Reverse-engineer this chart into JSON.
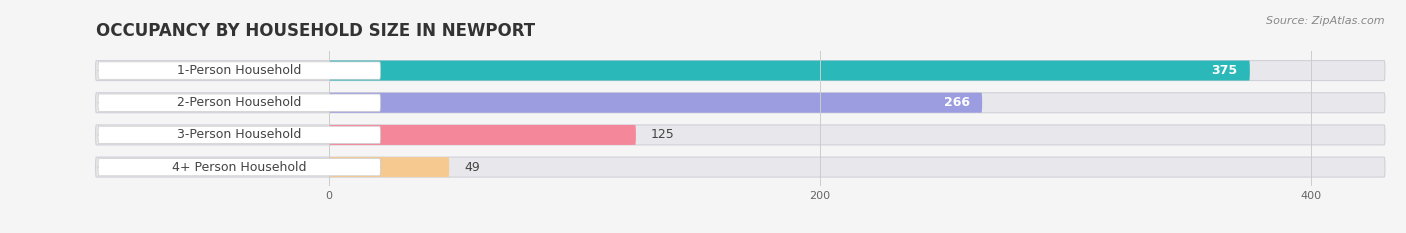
{
  "title": "OCCUPANCY BY HOUSEHOLD SIZE IN NEWPORT",
  "source": "Source: ZipAtlas.com",
  "categories": [
    "1-Person Household",
    "2-Person Household",
    "3-Person Household",
    "4+ Person Household"
  ],
  "values": [
    375,
    266,
    125,
    49
  ],
  "bar_colors": [
    "#2ab8b8",
    "#9b9de0",
    "#f4879a",
    "#f5c990"
  ],
  "background_color": "#f5f5f5",
  "bar_bg_color": "#e8e8ec",
  "label_bg_color": "#ffffff",
  "text_color": "#444444",
  "xlim": [
    -95,
    430
  ],
  "data_max": 400,
  "xticks": [
    0,
    200,
    400
  ],
  "title_fontsize": 12,
  "label_fontsize": 9,
  "value_fontsize": 9,
  "source_fontsize": 8
}
